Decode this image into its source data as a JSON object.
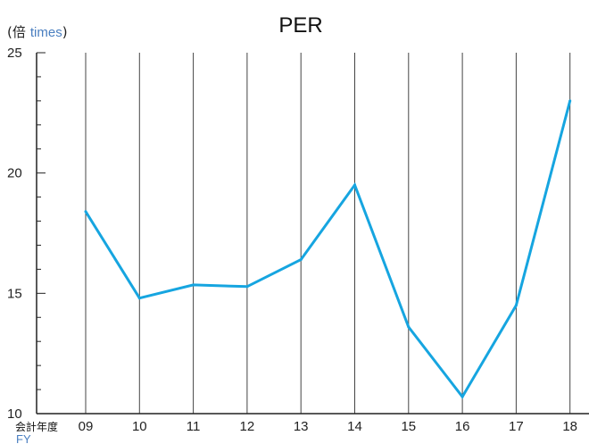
{
  "chart_data": {
    "type": "line",
    "title": "PER",
    "ylabel_jp": "倍",
    "ylabel_en": "times",
    "xlabel_jp": "会計年度",
    "xlabel_en": "FY",
    "categories": [
      "09",
      "10",
      "11",
      "12",
      "13",
      "14",
      "15",
      "16",
      "17",
      "18"
    ],
    "series": [
      {
        "values": [
          18.4,
          14.8,
          15.35,
          15.28,
          16.4,
          19.5,
          13.6,
          10.7,
          14.5,
          23.0
        ]
      }
    ],
    "ylim": [
      10,
      25
    ],
    "yticks": [
      10,
      15,
      20,
      25
    ],
    "grid": "vertical",
    "line_color": "#16a5e0",
    "grid_color": "#444444"
  }
}
